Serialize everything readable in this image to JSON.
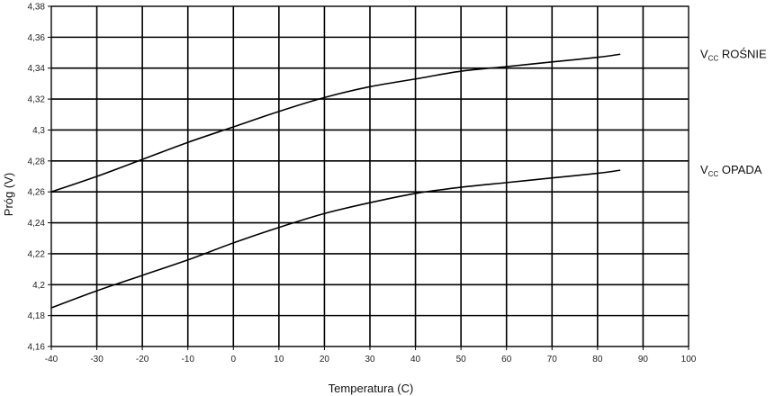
{
  "chart_data": {
    "type": "line",
    "title": "",
    "xlabel": "Temperatura (C)",
    "ylabel": "Próg (V)",
    "xlim": [
      -40,
      100
    ],
    "ylim": [
      4.16,
      4.38
    ],
    "x_ticks": [
      "-40",
      "-30",
      "-20",
      "-10",
      "0",
      "10",
      "20",
      "30",
      "40",
      "50",
      "60",
      "70",
      "80",
      "90",
      "100"
    ],
    "y_ticks": [
      "4,16",
      "4,18",
      "4,2",
      "4,22",
      "4,24",
      "4,26",
      "4,28",
      "4,3",
      "4,32",
      "4,34",
      "4,36",
      "4,38"
    ],
    "grid": true,
    "legend": "right",
    "series": [
      {
        "name": "VCC ROŚNIE",
        "label_main": "V",
        "label_sub": "CC",
        "label_rest": " ROŚNIE",
        "x": [
          -40,
          -30,
          -20,
          -10,
          0,
          10,
          20,
          30,
          40,
          50,
          60,
          70,
          80,
          85
        ],
        "y": [
          4.26,
          4.27,
          4.281,
          4.292,
          4.302,
          4.312,
          4.321,
          4.328,
          4.333,
          4.338,
          4.341,
          4.344,
          4.347,
          4.349
        ]
      },
      {
        "name": "VCC OPADA",
        "label_main": "V",
        "label_sub": "CC",
        "label_rest": " OPADA",
        "x": [
          -40,
          -30,
          -20,
          -10,
          0,
          10,
          20,
          30,
          40,
          50,
          60,
          70,
          80,
          85
        ],
        "y": [
          4.185,
          4.196,
          4.206,
          4.216,
          4.227,
          4.237,
          4.246,
          4.253,
          4.259,
          4.263,
          4.266,
          4.269,
          4.272,
          4.274
        ]
      }
    ]
  }
}
